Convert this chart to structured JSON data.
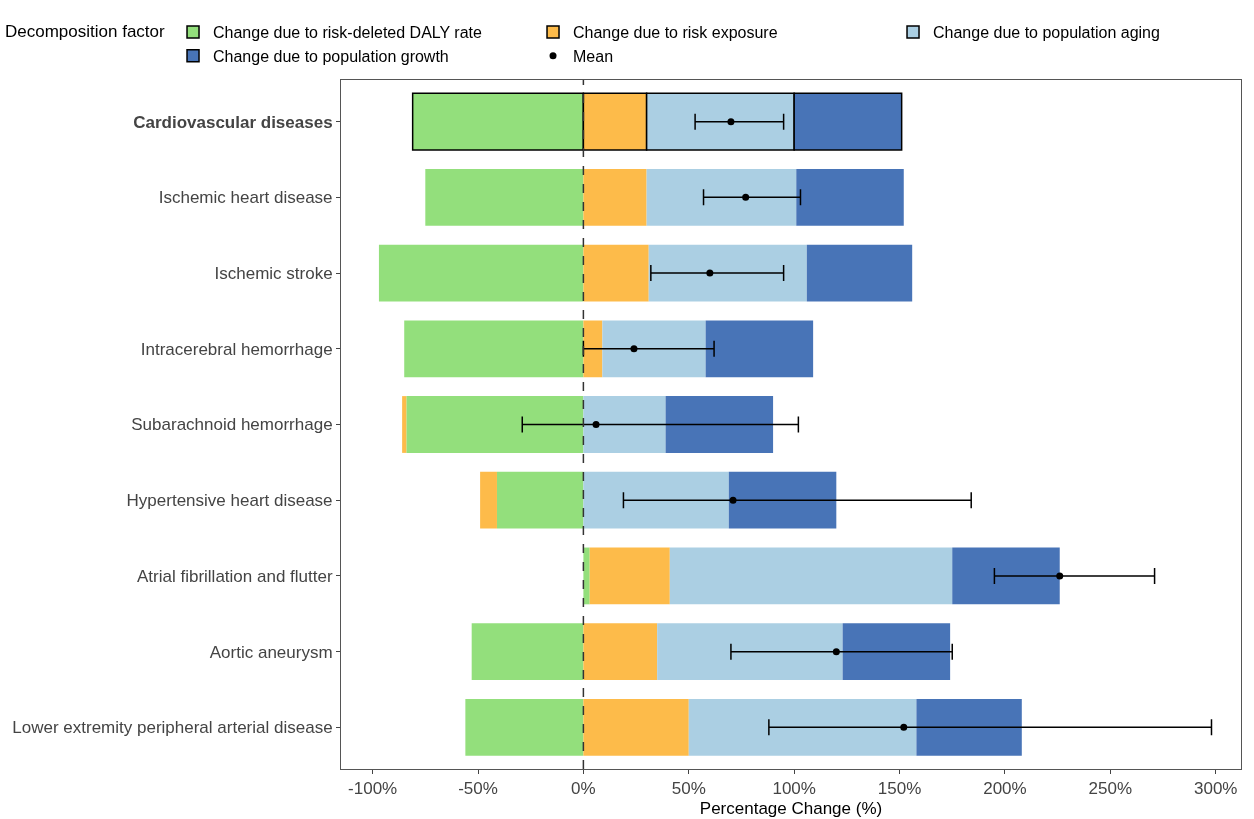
{
  "chart_data": {
    "type": "bar",
    "orientation": "horizontal",
    "stacked": true,
    "xlabel": "Percentage Change (%)",
    "legend_title": "Decomposition factor",
    "legend": "top",
    "categories": [
      "Cardiovascular diseases",
      "Ischemic heart disease",
      "Ischemic stroke",
      "Intracerebral hemorrhage",
      "Subarachnoid hemorrhage",
      "Hypertensive heart disease",
      "Atrial fibrillation and flutter",
      "Aortic aneurysm",
      "Lower extremity peripheral arterial disease"
    ],
    "series": [
      {
        "name": "Change due to risk-deleted DALY rate",
        "color": "#93df7c",
        "values": [
          -81,
          -75,
          -97,
          -85,
          -84,
          -41,
          3,
          -53,
          -56
        ]
      },
      {
        "name": "Change due to risk exposure",
        "color": "#fdbb4a",
        "values": [
          30,
          30,
          31,
          9,
          -2,
          -8,
          38,
          35,
          50
        ]
      },
      {
        "name": "Change due to population aging",
        "color": "#abcfe3",
        "values": [
          70,
          71,
          75,
          49,
          39,
          69,
          134,
          88,
          108
        ]
      },
      {
        "name": "Change due to population growth",
        "color": "#4874b7",
        "values": [
          51,
          51,
          50,
          51,
          51,
          51,
          51,
          51,
          50
        ]
      },
      {
        "name": "Mean",
        "type": "scatter",
        "color": "#000000",
        "marker": "circle",
        "values": [
          70,
          77,
          60,
          24,
          6,
          71,
          226,
          120,
          152
        ],
        "errors": [
          [
            53,
            95
          ],
          [
            57,
            103
          ],
          [
            32,
            95
          ],
          [
            0,
            62
          ],
          [
            -29,
            102
          ],
          [
            19,
            184
          ],
          [
            195,
            271
          ],
          [
            70,
            175
          ],
          [
            88,
            298
          ]
        ]
      }
    ],
    "xlim": [
      -115,
      312
    ],
    "xticks": [
      {
        "value": -100,
        "label": "-100%"
      },
      {
        "value": -50,
        "label": "-50%"
      },
      {
        "value": 0,
        "label": "0%"
      },
      {
        "value": 50,
        "label": "50%"
      },
      {
        "value": 100,
        "label": "100%"
      },
      {
        "value": 150,
        "label": "150%"
      },
      {
        "value": 200,
        "label": "200%"
      },
      {
        "value": 250,
        "label": "250%"
      },
      {
        "value": 300,
        "label": "300%"
      }
    ],
    "ref_lines": [
      {
        "axis": "x",
        "value": 0,
        "color": "#333333",
        "line_style": "dashed"
      }
    ],
    "grid": false
  }
}
